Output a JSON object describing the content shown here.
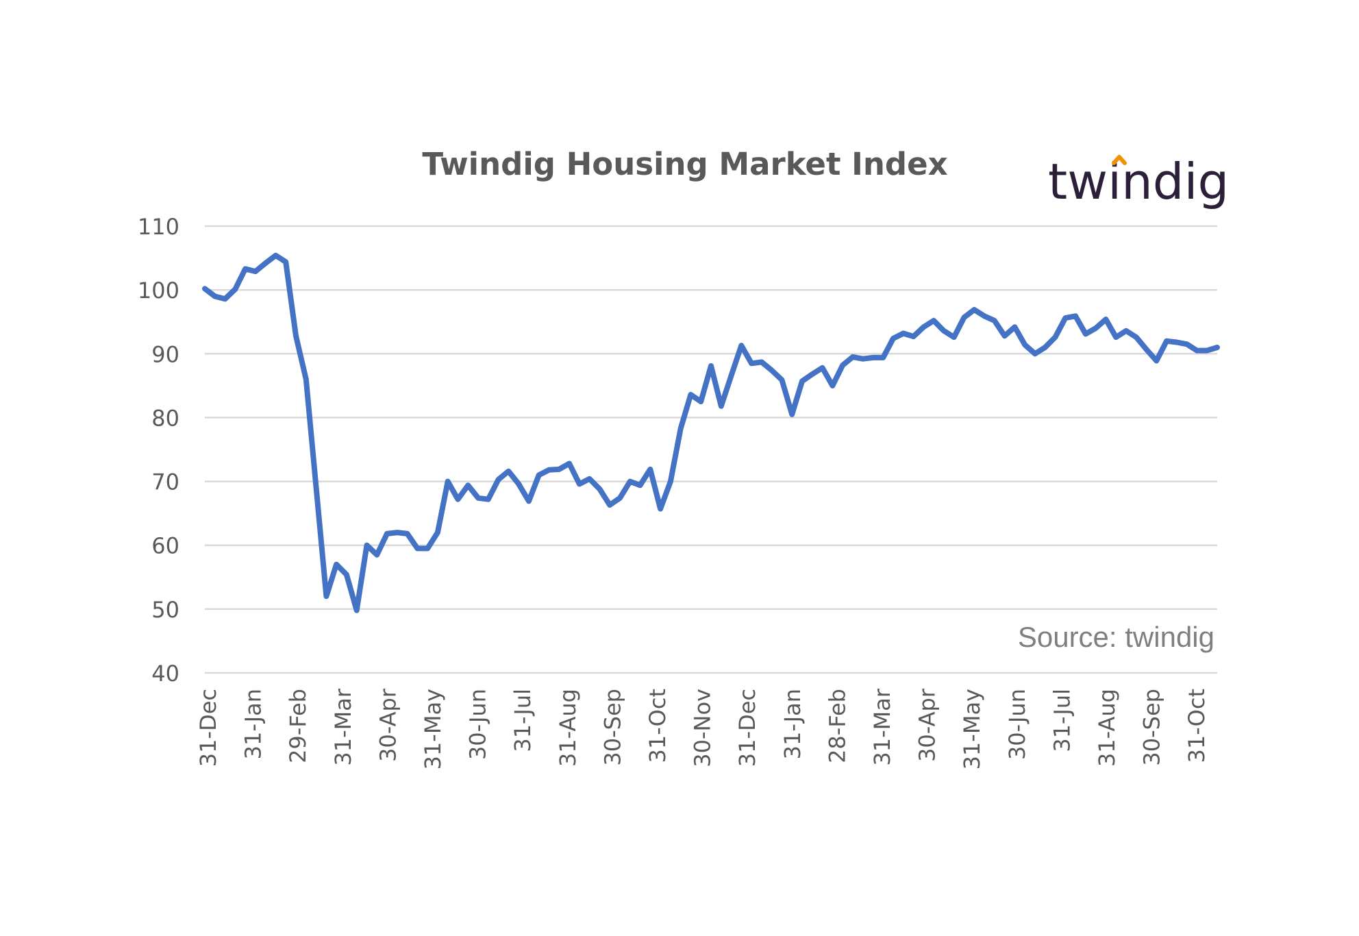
{
  "logo": {
    "text": "twindig",
    "text_color": "#2b1f3a",
    "accent_color": "#f39200"
  },
  "chart_data": {
    "type": "line",
    "title": "Twindig Housing Market Index",
    "annotation": "Source: twindig",
    "xlabel": "",
    "ylabel": "",
    "ylim": [
      40,
      110
    ],
    "yticks": [
      40,
      50,
      60,
      70,
      80,
      90,
      100,
      110
    ],
    "grid": true,
    "legend": "none",
    "x_tick_labels": [
      "31-Dec",
      "31-Jan",
      "29-Feb",
      "31-Mar",
      "30-Apr",
      "31-May",
      "30-Jun",
      "31-Jul",
      "31-Aug",
      "30-Sep",
      "31-Oct",
      "30-Nov",
      "31-Dec",
      "31-Jan",
      "28-Feb",
      "31-Mar",
      "30-Apr",
      "31-May",
      "30-Jun",
      "31-Jul",
      "31-Aug",
      "30-Sep",
      "31-Oct"
    ],
    "line_color": "#4472c4",
    "series": [
      {
        "values": [
          100.2,
          99.0,
          98.6,
          100.1,
          103.3,
          102.9,
          104.2,
          105.4,
          104.4,
          92.8,
          86.0,
          69.0,
          52.0,
          57.0,
          55.4,
          49.8,
          60.0,
          58.5,
          61.8,
          62.0,
          61.8,
          59.5,
          59.5,
          62.0,
          70.0,
          67.2,
          69.4,
          67.4,
          67.2,
          70.3,
          71.6,
          69.6,
          66.9,
          71.0,
          71.8,
          71.9,
          72.8,
          69.6,
          70.4,
          68.8,
          66.3,
          67.4,
          70.0,
          69.4,
          71.9,
          65.7,
          70.0,
          78.3,
          83.6,
          82.5,
          88.1,
          81.8,
          86.6,
          91.3,
          88.5,
          88.7,
          87.4,
          85.9,
          80.5,
          85.7,
          86.8,
          87.8,
          85.0,
          88.2,
          89.5,
          89.2,
          89.4,
          89.4,
          92.4,
          93.2,
          92.7,
          94.2,
          95.2,
          93.6,
          92.6,
          95.7,
          96.9,
          95.9,
          95.2,
          92.8,
          94.2,
          91.4,
          90.0,
          91.0,
          92.6,
          95.6,
          95.9,
          93.1,
          94.0,
          95.4,
          92.6,
          93.6,
          92.6,
          90.7,
          88.9,
          92.0,
          91.8,
          91.5,
          90.5,
          90.5,
          91.0
        ]
      }
    ]
  }
}
